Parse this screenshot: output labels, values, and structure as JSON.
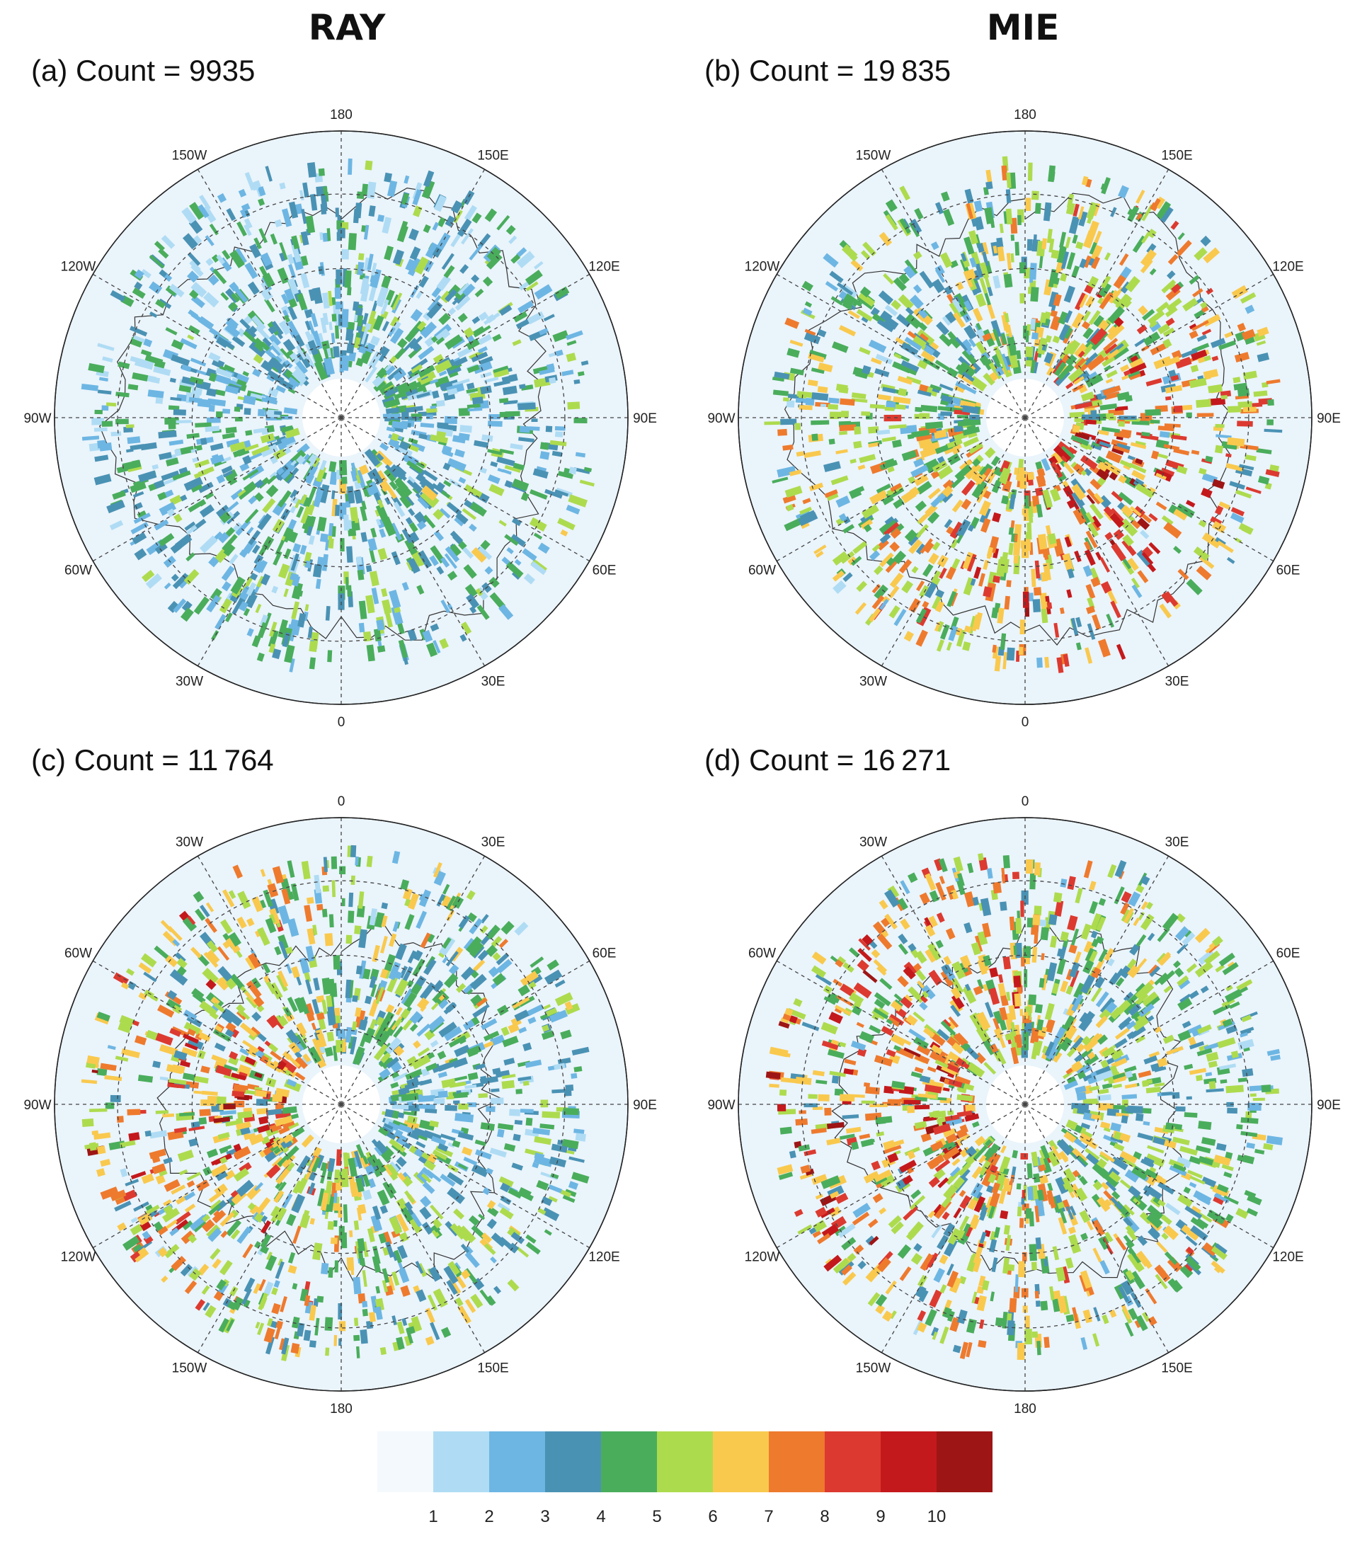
{
  "columns": {
    "left": "RAY",
    "right": "MIE"
  },
  "panels": [
    {
      "id": "a",
      "label": "(a) Count = 9935",
      "count": 9935,
      "hemisphere": "north",
      "pole_label": "180",
      "bottom_label": "0",
      "lon_labels": {
        "top": "180",
        "tr": "150E",
        "rt": "120E",
        "right": "90E",
        "rb": "60E",
        "br": "30E",
        "bottom": "0",
        "bl": "30W",
        "lb": "60W",
        "left": "90W",
        "lt": "120W",
        "tl": "150W"
      },
      "intensity": "low",
      "hotspot_bearing_deg": 140
    },
    {
      "id": "b",
      "label": "(b) Count = 19 835",
      "count": 19835,
      "hemisphere": "north",
      "lon_labels": {
        "top": "180",
        "tr": "150E",
        "rt": "120E",
        "right": "90E",
        "rb": "60E",
        "br": "30E",
        "bottom": "0",
        "bl": "30W",
        "lb": "60W",
        "left": "90W",
        "lt": "120W",
        "tl": "150W"
      },
      "intensity": "high",
      "hotspot_bearing_deg": 135
    },
    {
      "id": "c",
      "label": "(c) Count = 11 764",
      "count": 11764,
      "hemisphere": "south",
      "lon_labels": {
        "top": "0",
        "tr": "30E",
        "rt": "60E",
        "right": "90E",
        "rb": "120E",
        "br": "150E",
        "bottom": "180",
        "bl": "150W",
        "lb": "120W",
        "left": "90W",
        "lt": "60W",
        "tl": "30W"
      },
      "intensity": "medium",
      "hotspot_bearing_deg": 270
    },
    {
      "id": "d",
      "label": "(d) Count = 16 271",
      "count": 16271,
      "hemisphere": "south",
      "lon_labels": {
        "top": "0",
        "tr": "30E",
        "rt": "60E",
        "right": "90E",
        "rb": "120E",
        "br": "150E",
        "bottom": "180",
        "bl": "150W",
        "lb": "120W",
        "left": "90W",
        "lt": "60W",
        "tl": "30W"
      },
      "intensity": "high",
      "hotspot_bearing_deg": 265
    }
  ],
  "colorbar": {
    "ticks": [
      "1",
      "2",
      "3",
      "4",
      "5",
      "6",
      "7",
      "8",
      "9",
      "10"
    ],
    "colors": [
      "#f4f9fd",
      "#afdcf4",
      "#6db6e3",
      "#4a92b4",
      "#4aad5c",
      "#addb4e",
      "#f9c94e",
      "#ee7a2e",
      "#dc3a30",
      "#c4191c",
      "#9e1515"
    ]
  },
  "land_color": "#eaf4fb"
}
